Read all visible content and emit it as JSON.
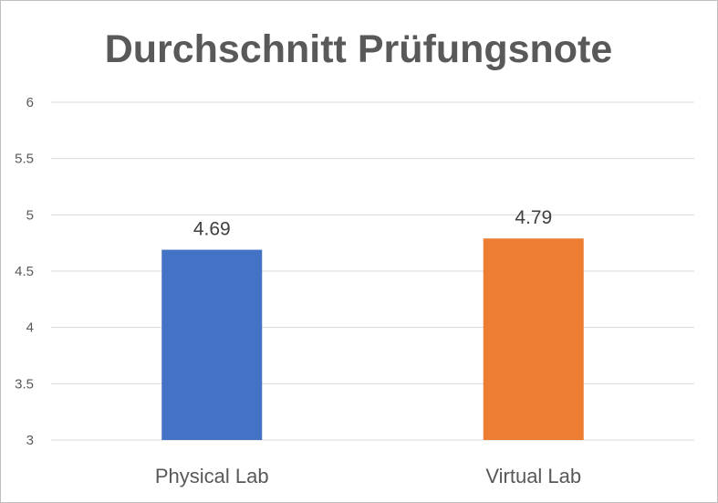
{
  "chart_data": {
    "type": "bar",
    "title": "Durchschnitt Prüfungsnote",
    "xlabel": "",
    "ylabel": "",
    "categories": [
      "Physical Lab",
      "Virtual Lab"
    ],
    "values": [
      4.69,
      4.79
    ],
    "data_labels": [
      "4.69",
      "4.79"
    ],
    "bar_colors": [
      "#4472c4",
      "#ed7d31"
    ],
    "ylim": [
      3,
      6
    ],
    "yticks": [
      3,
      3.5,
      4,
      4.5,
      5,
      5.5,
      6
    ],
    "ytick_labels": [
      "3",
      "3.5",
      "4",
      "4.5",
      "5",
      "5.5",
      "6"
    ],
    "grid": true,
    "gridline_color": "#d9d9d9",
    "legend": "none"
  }
}
